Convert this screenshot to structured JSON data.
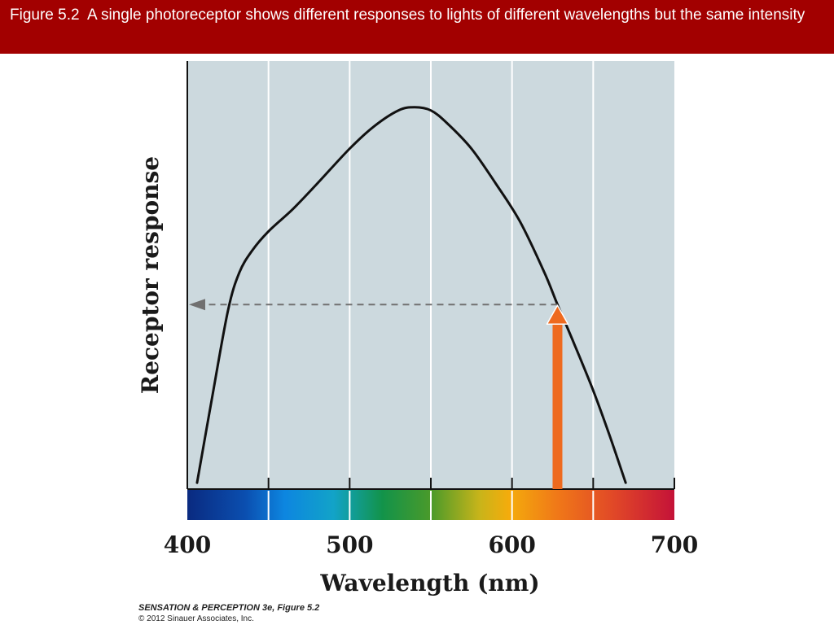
{
  "header": {
    "title": "Figure 5.2  A single photoreceptor shows different responses to lights of different wavelengths but the same intensity"
  },
  "colors": {
    "header_bg": "#a20000",
    "plot_bg": "#ccd9de",
    "curve": "#111111",
    "stimulus_arrow": "#ee6a1f",
    "response_arrow": "#707070"
  },
  "chart_data": {
    "type": "line",
    "xlabel": "Wavelength (nm)",
    "ylabel": "Receptor response",
    "xlim": [
      400,
      700
    ],
    "x_ticks": [
      400,
      450,
      500,
      550,
      600,
      650,
      700
    ],
    "x_tick_labels": [
      "400",
      "500",
      "600",
      "700"
    ],
    "x_tick_label_values": [
      400,
      500,
      600,
      700
    ],
    "grid": true,
    "y_tick_labels": false,
    "series": [
      {
        "x": [
          406,
          415,
          425,
          432,
          440,
          450,
          465,
          480,
          500,
          515,
          530,
          540,
          550,
          560,
          575,
          590,
          605,
          620,
          628,
          638,
          650,
          660,
          670
        ],
        "y": [
          0.02,
          0.28,
          0.56,
          0.68,
          0.75,
          0.81,
          0.88,
          0.96,
          1.07,
          1.14,
          1.19,
          1.2,
          1.19,
          1.15,
          1.07,
          0.96,
          0.84,
          0.68,
          0.58,
          0.46,
          0.31,
          0.17,
          0.02
        ]
      }
    ],
    "annotations": {
      "stimulus_wavelength": 628,
      "response_level": 0.58,
      "spectrum_bar": true
    }
  },
  "footer": {
    "credit_line1": "SENSATION & PERCEPTION 3e, Figure 5.2",
    "credit_line2": "© 2012 Sinauer Associates, Inc."
  }
}
